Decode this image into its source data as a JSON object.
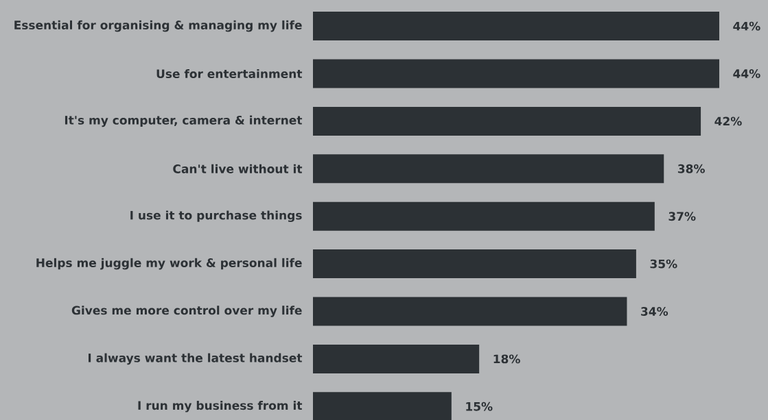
{
  "chart_data": {
    "type": "bar",
    "orientation": "horizontal",
    "categories": [
      "Essential for organising & managing my life",
      "Use for entertainment",
      "It's my computer, camera & internet",
      "Can't live without it",
      "I use it to purchase things",
      "Helps me juggle my work & personal life",
      "Gives me more control over my life",
      "I always want the latest handset",
      "I run my business from it"
    ],
    "values": [
      44,
      44,
      42,
      38,
      37,
      35,
      34,
      18,
      15
    ],
    "value_labels": [
      "44%",
      "44%",
      "42%",
      "38%",
      "37%",
      "35%",
      "34%",
      "18%",
      "15%"
    ],
    "color": "#2c3135",
    "grid": false
  }
}
